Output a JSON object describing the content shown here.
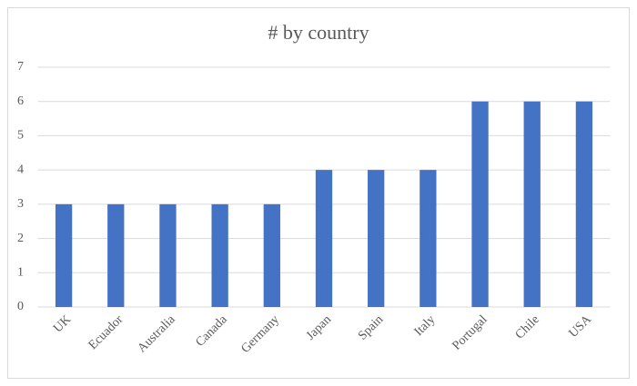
{
  "chart_data": {
    "type": "bar",
    "title": "# by country",
    "categories": [
      "UK",
      "Ecuador",
      "Australia",
      "Canada",
      "Germany",
      "Japan",
      "Spain",
      "Italy",
      "Portugal",
      "Chile",
      "USA"
    ],
    "values": [
      3,
      3,
      3,
      3,
      3,
      4,
      4,
      4,
      6,
      6,
      6
    ],
    "color": "#4472c4",
    "ylim": [
      0,
      7
    ],
    "yticks": [
      0,
      1,
      2,
      3,
      4,
      5,
      6,
      7
    ],
    "grid": true
  }
}
